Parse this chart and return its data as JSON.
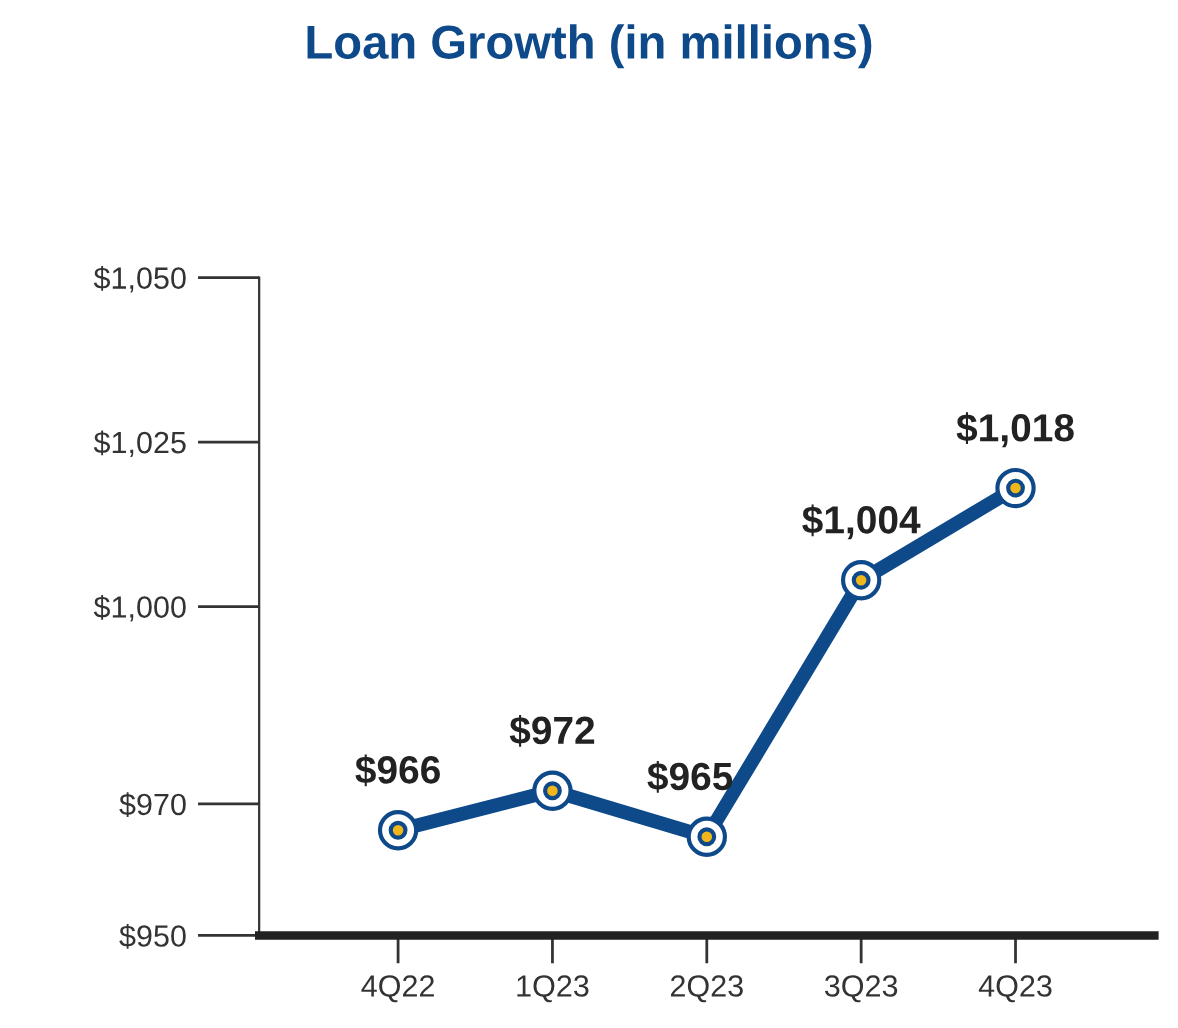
{
  "chart_data": {
    "type": "line",
    "title": "Loan Growth (in millions)",
    "categories": [
      "4Q22",
      "1Q23",
      "2Q23",
      "3Q23",
      "4Q23"
    ],
    "series": [
      {
        "color": "#0e4a8a",
        "values": [
          966,
          972,
          965,
          1004,
          1018
        ]
      }
    ],
    "value_labels": [
      "$966",
      "$972",
      "$965",
      "$1,004",
      "$1,018"
    ],
    "ylim": [
      950,
      1050
    ],
    "yticks": [
      {
        "value": 950,
        "label": "$950"
      },
      {
        "value": 970,
        "label": "$970"
      },
      {
        "value": 1000,
        "label": "$1,000"
      },
      {
        "value": 1025,
        "label": "$1,025"
      },
      {
        "value": 1050,
        "label": "$1,050"
      }
    ],
    "marker": "circle",
    "line_style": "solid",
    "grid": false,
    "legend": false
  }
}
